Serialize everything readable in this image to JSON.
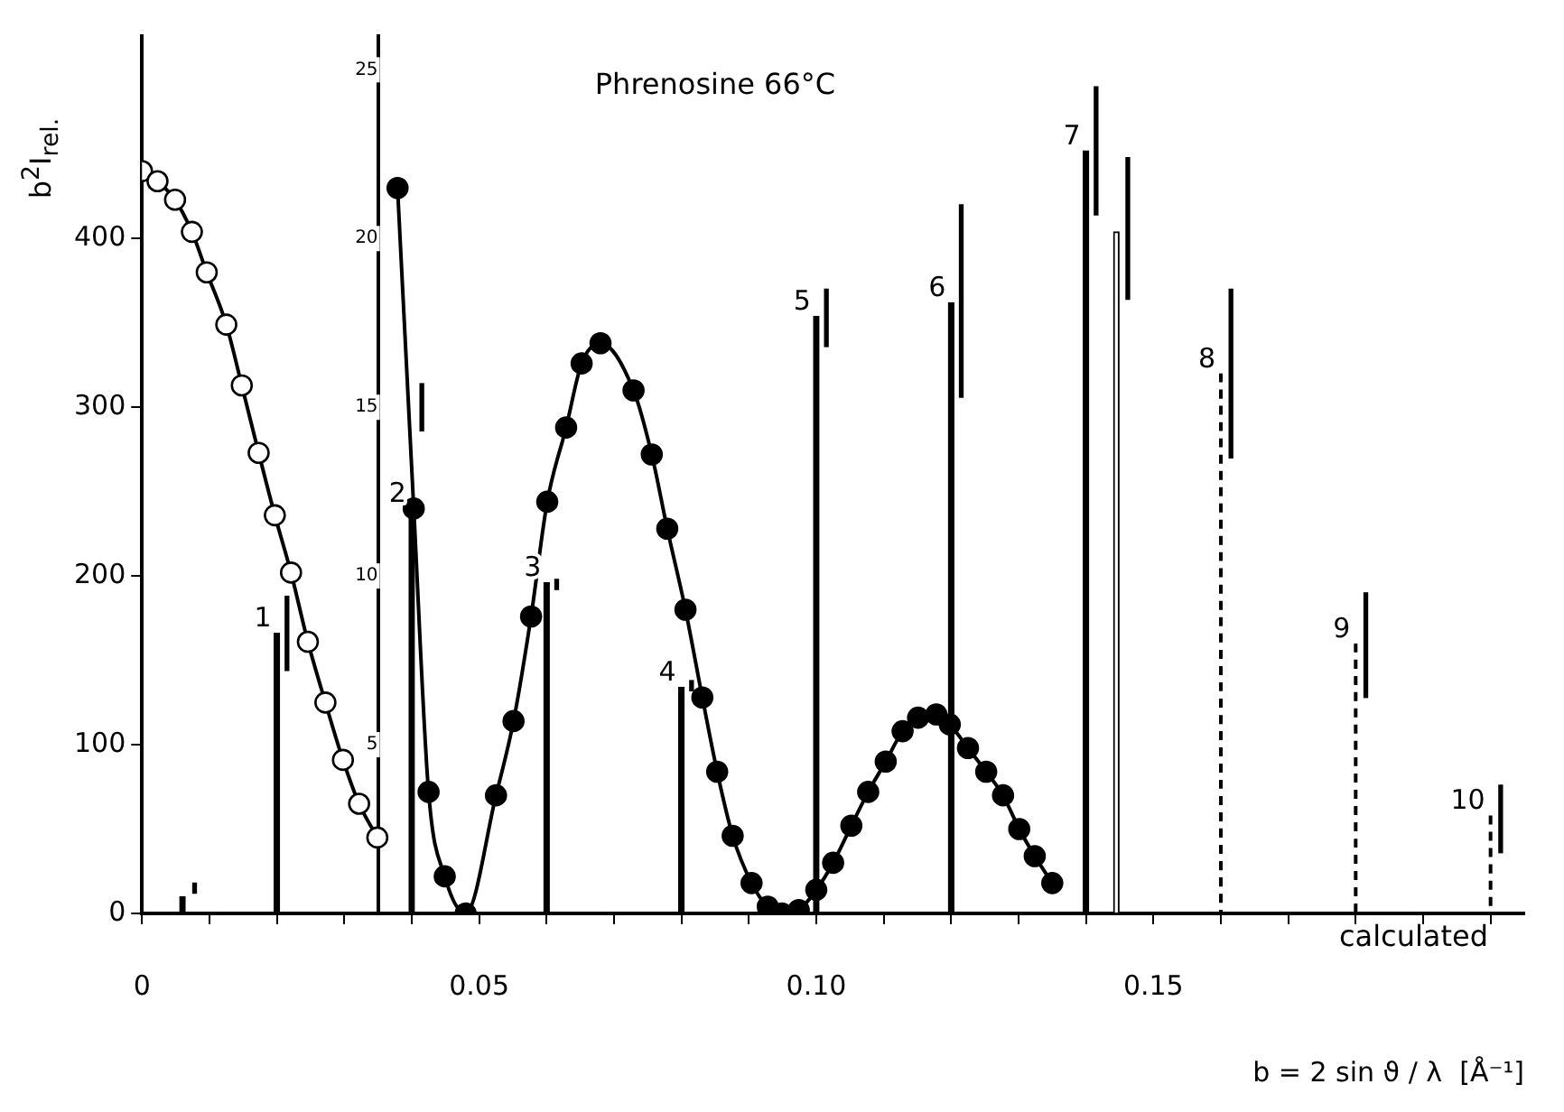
{
  "chart_data": {
    "type": "line",
    "title": "Phrenosine 66°C",
    "xlabel": "b = 2 sin ϑ / λ  [Å⁻¹]",
    "ylabel": "b$^{2}$I$_{rel.}$",
    "annotations": [
      "calculated",
      {
        "text": "1",
        "x": 0.02,
        "y": 166
      },
      {
        "text": "2",
        "x": 0.04,
        "y": 240
      },
      {
        "text": "3",
        "x": 0.06,
        "y": 196
      },
      {
        "text": "4",
        "x": 0.08,
        "y": 134
      },
      {
        "text": "5",
        "x": 0.1,
        "y": 354
      },
      {
        "text": "6",
        "x": 0.12,
        "y": 362
      },
      {
        "text": "7",
        "x": 0.14,
        "y": 452
      },
      {
        "text": "8",
        "x": 0.16,
        "y": 320
      },
      {
        "text": "9",
        "x": 0.18,
        "y": 160
      },
      {
        "text": "10",
        "x": 0.2,
        "y": 58
      }
    ],
    "xlim": [
      0,
      0.205
    ],
    "xticks": [
      0,
      {
        "value": 0.01,
        "label": null
      },
      {
        "value": 0.02,
        "label": null
      },
      {
        "value": 0.03,
        "label": null
      },
      {
        "value": 0.04,
        "label": null
      },
      0.05,
      {
        "value": 0.06,
        "label": null
      },
      {
        "value": 0.07,
        "label": null
      },
      {
        "value": 0.08,
        "label": null
      },
      {
        "value": 0.09,
        "label": null
      },
      {
        "value": 0.1,
        "label": "0.10"
      },
      {
        "value": 0.11,
        "label": null
      },
      {
        "value": 0.12,
        "label": null
      },
      {
        "value": 0.13,
        "label": null
      },
      {
        "value": 0.14,
        "label": null
      },
      0.15,
      {
        "value": 0.16,
        "label": null
      },
      {
        "value": 0.17,
        "label": null
      },
      {
        "value": 0.18,
        "label": null
      },
      {
        "value": 0.19,
        "label": null
      },
      {
        "value": 0.2,
        "label": null
      }
    ],
    "ylim": [
      0,
      520
    ],
    "yticks": [
      0,
      100,
      200,
      300,
      400
    ],
    "y2lim": [
      0,
      26
    ],
    "y2ticks": [
      {
        "value": 0,
        "label": null
      },
      5,
      10,
      15,
      20,
      25
    ],
    "grid": false,
    "legend": false,
    "series": [
      {
        "axis": "y",
        "marker": "circle",
        "color": "#ffffff",
        "x": [
          0,
          0.0023,
          0.0049,
          0.0074,
          0.0096,
          0.0125,
          0.0148,
          0.0173,
          0.0197,
          0.0221,
          0.0246,
          0.0272,
          0.0298,
          0.0322,
          0.0349
        ],
        "values": [
          440,
          434,
          423,
          404,
          380,
          349,
          313,
          273,
          236,
          202,
          161,
          125,
          91,
          65,
          45
        ]
      },
      {
        "axis": "y2",
        "marker": "circle",
        "color": "#000000",
        "x": [
          0.0379,
          0.0403,
          0.0425,
          0.0449,
          0.048,
          0.0525,
          0.0551,
          0.0577,
          0.0601,
          0.0629,
          0.0652,
          0.068,
          0.0729,
          0.0756,
          0.0779,
          0.0806,
          0.0831,
          0.0853,
          0.0876,
          0.0904,
          0.0928,
          0.0949,
          0.0974,
          0.1,
          0.1025,
          0.1052,
          0.1077,
          0.1103,
          0.1128,
          0.1151,
          0.1178,
          0.1198,
          0.1225,
          0.1252,
          0.1277,
          0.1301,
          0.1324,
          0.135
        ],
        "values": [
          21.5,
          12.0,
          3.6,
          1.1,
          0,
          3.5,
          5.7,
          8.8,
          12.2,
          14.4,
          16.3,
          16.9,
          15.5,
          13.6,
          11.4,
          9.0,
          6.4,
          4.2,
          2.3,
          0.9,
          0.2,
          0,
          0.1,
          0.7,
          1.5,
          2.6,
          3.6,
          4.5,
          5.4,
          5.8,
          5.9,
          5.6,
          4.9,
          4.2,
          3.5,
          2.5,
          1.7,
          0.9
        ]
      },
      {
        "type": "bar",
        "axis": "y2",
        "color": "#000000",
        "x": [
          0.006,
          0.02,
          0.04,
          0.06,
          0.08,
          0.1,
          0.12,
          0.14
        ],
        "values": [
          0.5,
          8.3,
          12,
          9.8,
          6.7,
          17.7,
          18.1,
          22.6
        ]
      },
      {
        "type": "bar",
        "axis": "y2",
        "color": "#ffffff",
        "x": [
          0.1445
        ],
        "values": [
          20.2
        ]
      },
      {
        "axis": "y2",
        "marker": "none",
        "line_style": "dashed",
        "color": "#000000",
        "x": [
          0.16,
          0.16
        ],
        "values": [
          16.0,
          0
        ]
      },
      {
        "axis": "y2",
        "marker": "none",
        "line_style": "dashed",
        "color": "#000000",
        "x": [
          0.18,
          0.18
        ],
        "values": [
          8.0,
          0
        ]
      },
      {
        "axis": "y2",
        "marker": "none",
        "line_style": "dashed",
        "color": "#000000",
        "x": [
          0.2,
          0.2
        ],
        "values": [
          2.9,
          0
        ]
      },
      {
        "type": "bar",
        "axis": "y2",
        "color": "#000000",
        "x": [
          0.0078,
          0.0215,
          0.0415,
          0.0615,
          0.0815,
          0.1015,
          0.1215,
          0.1415,
          0.1462,
          0.1615,
          0.1815,
          0.2015
        ],
        "base": [
          0.6,
          7.2,
          14.3,
          9.6,
          6.6,
          16.8,
          15.3,
          20.7,
          18.2,
          13.5,
          6.4,
          1.8
        ],
        "values": [
          0.3,
          2.2,
          1.4,
          0.3,
          0.3,
          1.7,
          5.7,
          3.8,
          4.2,
          5.0,
          3.1,
          2.0
        ]
      }
    ]
  }
}
